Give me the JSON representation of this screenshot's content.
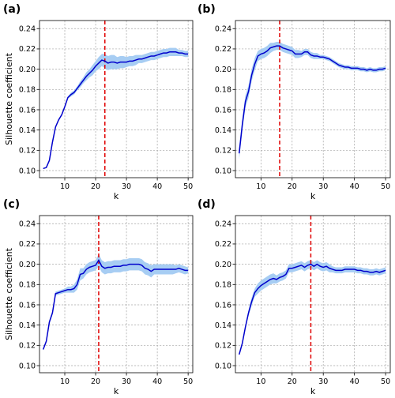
{
  "chart_data": [
    {
      "type": "line",
      "panel_label": "(a)",
      "xlabel": "k",
      "ylabel": "Silhouette coefficient",
      "xlim": [
        1.8,
        51.5
      ],
      "ylim": [
        0.093,
        0.248
      ],
      "xticks": [
        10,
        20,
        30,
        40,
        50
      ],
      "yticks": [
        0.1,
        0.12,
        0.14,
        0.16,
        0.18,
        0.2,
        0.22,
        0.24
      ],
      "ytick_labels": [
        "0.10",
        "0.12",
        "0.14",
        "0.16",
        "0.18",
        "0.20",
        "0.22",
        "0.24"
      ],
      "grid": true,
      "optimal_k": 23,
      "series": {
        "x": [
          3,
          4,
          5,
          6,
          7,
          8,
          9,
          10,
          11,
          12,
          13,
          14,
          15,
          16,
          17,
          18,
          19,
          20,
          21,
          22,
          23,
          24,
          25,
          26,
          27,
          28,
          29,
          30,
          31,
          32,
          33,
          34,
          35,
          36,
          37,
          38,
          39,
          40,
          41,
          42,
          43,
          44,
          45,
          46,
          47,
          48,
          49,
          50
        ],
        "mean": [
          0.102,
          0.103,
          0.11,
          0.128,
          0.143,
          0.15,
          0.155,
          0.163,
          0.172,
          0.175,
          0.177,
          0.181,
          0.185,
          0.189,
          0.193,
          0.196,
          0.199,
          0.203,
          0.206,
          0.209,
          0.208,
          0.206,
          0.207,
          0.207,
          0.206,
          0.207,
          0.207,
          0.207,
          0.208,
          0.208,
          0.209,
          0.21,
          0.21,
          0.211,
          0.212,
          0.213,
          0.213,
          0.214,
          0.215,
          0.216,
          0.216,
          0.217,
          0.217,
          0.217,
          0.216,
          0.216,
          0.215,
          0.215
        ],
        "band": [
          0.0,
          0.0,
          0.0,
          0.0,
          0.0,
          0.001,
          0.001,
          0.001,
          0.001,
          0.002,
          0.002,
          0.002,
          0.003,
          0.003,
          0.004,
          0.004,
          0.005,
          0.005,
          0.006,
          0.006,
          0.007,
          0.007,
          0.007,
          0.007,
          0.006,
          0.006,
          0.006,
          0.005,
          0.005,
          0.005,
          0.005,
          0.004,
          0.004,
          0.004,
          0.004,
          0.004,
          0.004,
          0.004,
          0.004,
          0.004,
          0.004,
          0.004,
          0.004,
          0.004,
          0.003,
          0.003,
          0.003,
          0.003
        ]
      }
    },
    {
      "type": "line",
      "panel_label": "(b)",
      "xlabel": "k",
      "ylabel": "",
      "xlim": [
        1.8,
        51.5
      ],
      "ylim": [
        0.093,
        0.248
      ],
      "xticks": [
        10,
        20,
        30,
        40,
        50
      ],
      "yticks": [
        0.1,
        0.12,
        0.14,
        0.16,
        0.18,
        0.2,
        0.22,
        0.24
      ],
      "ytick_labels": [
        "0.10",
        "0.12",
        "0.14",
        "0.16",
        "0.18",
        "0.20",
        "0.22",
        "0.24"
      ],
      "grid": true,
      "optimal_k": 16,
      "series": {
        "x": [
          3,
          4,
          5,
          6,
          7,
          8,
          9,
          10,
          11,
          12,
          13,
          14,
          15,
          16,
          17,
          18,
          19,
          20,
          21,
          22,
          23,
          24,
          25,
          26,
          27,
          28,
          29,
          30,
          31,
          32,
          33,
          34,
          35,
          36,
          37,
          38,
          39,
          40,
          41,
          42,
          43,
          44,
          45,
          46,
          47,
          48,
          49,
          50
        ],
        "mean": [
          0.117,
          0.145,
          0.168,
          0.178,
          0.194,
          0.205,
          0.213,
          0.215,
          0.216,
          0.218,
          0.221,
          0.222,
          0.223,
          0.223,
          0.221,
          0.22,
          0.219,
          0.218,
          0.215,
          0.215,
          0.215,
          0.217,
          0.217,
          0.214,
          0.213,
          0.213,
          0.212,
          0.212,
          0.211,
          0.21,
          0.208,
          0.206,
          0.204,
          0.203,
          0.202,
          0.202,
          0.201,
          0.201,
          0.201,
          0.2,
          0.2,
          0.199,
          0.2,
          0.199,
          0.199,
          0.2,
          0.2,
          0.201
        ],
        "band": [
          0.006,
          0.006,
          0.006,
          0.006,
          0.006,
          0.006,
          0.005,
          0.005,
          0.005,
          0.005,
          0.005,
          0.004,
          0.004,
          0.004,
          0.004,
          0.004,
          0.004,
          0.004,
          0.004,
          0.004,
          0.003,
          0.003,
          0.003,
          0.003,
          0.003,
          0.003,
          0.002,
          0.002,
          0.002,
          0.002,
          0.002,
          0.002,
          0.002,
          0.002,
          0.002,
          0.002,
          0.002,
          0.002,
          0.002,
          0.002,
          0.002,
          0.002,
          0.002,
          0.002,
          0.002,
          0.002,
          0.002,
          0.002
        ]
      }
    },
    {
      "type": "line",
      "panel_label": "(c)",
      "xlabel": "k",
      "ylabel": "Silhouette coefficient",
      "xlim": [
        1.8,
        51.5
      ],
      "ylim": [
        0.093,
        0.248
      ],
      "xticks": [
        10,
        20,
        30,
        40,
        50
      ],
      "yticks": [
        0.1,
        0.12,
        0.14,
        0.16,
        0.18,
        0.2,
        0.22,
        0.24
      ],
      "ytick_labels": [
        "0.10",
        "0.12",
        "0.14",
        "0.16",
        "0.18",
        "0.20",
        "0.22",
        "0.24"
      ],
      "grid": true,
      "optimal_k": 21,
      "series": {
        "x": [
          3,
          4,
          5,
          6,
          7,
          8,
          9,
          10,
          11,
          12,
          13,
          14,
          15,
          16,
          17,
          18,
          19,
          20,
          21,
          22,
          23,
          24,
          25,
          26,
          27,
          28,
          29,
          30,
          31,
          32,
          33,
          34,
          35,
          36,
          37,
          38,
          39,
          40,
          41,
          42,
          43,
          44,
          45,
          46,
          47,
          48,
          49,
          50
        ],
        "mean": [
          0.116,
          0.124,
          0.143,
          0.152,
          0.171,
          0.172,
          0.173,
          0.174,
          0.175,
          0.175,
          0.176,
          0.18,
          0.19,
          0.191,
          0.195,
          0.197,
          0.198,
          0.199,
          0.204,
          0.198,
          0.196,
          0.197,
          0.197,
          0.198,
          0.198,
          0.198,
          0.199,
          0.199,
          0.2,
          0.2,
          0.2,
          0.2,
          0.199,
          0.196,
          0.195,
          0.193,
          0.195,
          0.195,
          0.195,
          0.195,
          0.195,
          0.195,
          0.195,
          0.195,
          0.196,
          0.195,
          0.194,
          0.194
        ],
        "band": [
          0.001,
          0.001,
          0.002,
          0.002,
          0.002,
          0.002,
          0.002,
          0.002,
          0.003,
          0.003,
          0.004,
          0.005,
          0.006,
          0.005,
          0.005,
          0.005,
          0.005,
          0.005,
          0.006,
          0.006,
          0.006,
          0.006,
          0.006,
          0.006,
          0.006,
          0.006,
          0.006,
          0.006,
          0.006,
          0.006,
          0.006,
          0.006,
          0.006,
          0.006,
          0.006,
          0.006,
          0.005,
          0.005,
          0.005,
          0.005,
          0.005,
          0.005,
          0.005,
          0.004,
          0.004,
          0.004,
          0.004,
          0.003
        ]
      }
    },
    {
      "type": "line",
      "panel_label": "(d)",
      "xlabel": "k",
      "ylabel": "",
      "xlim": [
        1.8,
        51.5
      ],
      "ylim": [
        0.093,
        0.248
      ],
      "xticks": [
        10,
        20,
        30,
        40,
        50
      ],
      "yticks": [
        0.1,
        0.12,
        0.14,
        0.16,
        0.18,
        0.2,
        0.22,
        0.24
      ],
      "ytick_labels": [
        "0.10",
        "0.12",
        "0.14",
        "0.16",
        "0.18",
        "0.20",
        "0.22",
        "0.24"
      ],
      "grid": true,
      "optimal_k": 26,
      "series": {
        "x": [
          3,
          4,
          5,
          6,
          7,
          8,
          9,
          10,
          11,
          12,
          13,
          14,
          15,
          16,
          17,
          18,
          19,
          20,
          21,
          22,
          23,
          24,
          25,
          26,
          27,
          28,
          29,
          30,
          31,
          32,
          33,
          34,
          35,
          36,
          37,
          38,
          39,
          40,
          41,
          42,
          43,
          44,
          45,
          46,
          47,
          48,
          49,
          50
        ],
        "mean": [
          0.111,
          0.122,
          0.138,
          0.152,
          0.163,
          0.172,
          0.176,
          0.179,
          0.181,
          0.183,
          0.185,
          0.186,
          0.185,
          0.187,
          0.188,
          0.19,
          0.196,
          0.196,
          0.197,
          0.198,
          0.199,
          0.197,
          0.199,
          0.2,
          0.198,
          0.2,
          0.198,
          0.197,
          0.198,
          0.196,
          0.195,
          0.194,
          0.194,
          0.194,
          0.195,
          0.195,
          0.195,
          0.195,
          0.194,
          0.194,
          0.193,
          0.193,
          0.192,
          0.192,
          0.193,
          0.192,
          0.193,
          0.194
        ],
        "band": [
          0.001,
          0.002,
          0.002,
          0.003,
          0.004,
          0.004,
          0.005,
          0.005,
          0.005,
          0.005,
          0.005,
          0.005,
          0.004,
          0.004,
          0.004,
          0.004,
          0.004,
          0.004,
          0.004,
          0.004,
          0.004,
          0.004,
          0.004,
          0.004,
          0.004,
          0.004,
          0.004,
          0.004,
          0.004,
          0.004,
          0.003,
          0.003,
          0.003,
          0.003,
          0.003,
          0.003,
          0.003,
          0.003,
          0.003,
          0.003,
          0.003,
          0.003,
          0.003,
          0.003,
          0.003,
          0.003,
          0.003,
          0.003
        ]
      }
    }
  ]
}
